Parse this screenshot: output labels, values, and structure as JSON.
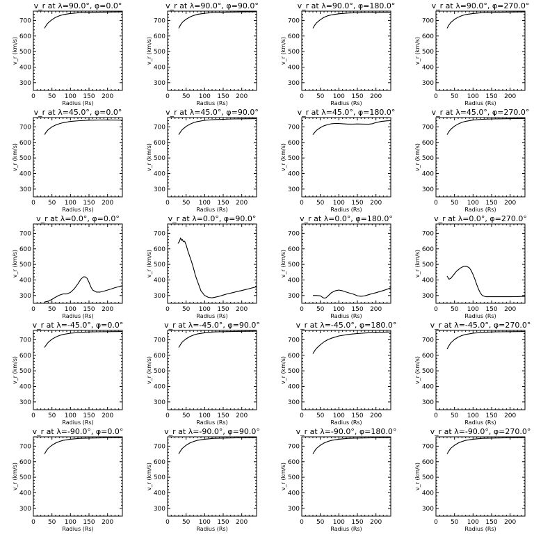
{
  "chart_data": [
    {
      "type": "line",
      "title": "v_r at λ=90.0°, φ=0.0°",
      "xlabel": "Radius (Rs)",
      "ylabel": "v_r (km/s)",
      "xlim": [
        0,
        240
      ],
      "ylim": [
        250,
        760
      ],
      "xticks": [
        0,
        50,
        100,
        150,
        200
      ],
      "yticks": [
        300,
        400,
        500,
        600,
        700
      ],
      "grid": false,
      "x": [
        30,
        35,
        40,
        50,
        60,
        70,
        80,
        100,
        125,
        150,
        175,
        200,
        240
      ],
      "y": [
        650,
        670,
        685,
        705,
        720,
        730,
        737,
        745,
        750,
        752,
        753,
        754,
        755
      ]
    },
    {
      "type": "line",
      "title": "v_r at λ=90.0°, φ=90.0°",
      "xlabel": "Radius (Rs)",
      "ylabel": "v_r (km/s)",
      "xlim": [
        0,
        240
      ],
      "ylim": [
        250,
        760
      ],
      "xticks": [
        0,
        50,
        100,
        150,
        200
      ],
      "yticks": [
        300,
        400,
        500,
        600,
        700
      ],
      "grid": false,
      "x": [
        30,
        35,
        40,
        50,
        60,
        70,
        80,
        100,
        125,
        150,
        175,
        200,
        240
      ],
      "y": [
        650,
        672,
        688,
        708,
        722,
        732,
        739,
        746,
        751,
        753,
        754,
        755,
        756
      ]
    },
    {
      "type": "line",
      "title": "v_r at λ=90.0°, φ=180.0°",
      "xlabel": "Radius (Rs)",
      "ylabel": "v_r (km/s)",
      "xlim": [
        0,
        240
      ],
      "ylim": [
        250,
        760
      ],
      "xticks": [
        0,
        50,
        100,
        150,
        200
      ],
      "yticks": [
        300,
        400,
        500,
        600,
        700
      ],
      "grid": false,
      "x": [
        30,
        35,
        40,
        50,
        60,
        70,
        80,
        100,
        125,
        150,
        175,
        200,
        240
      ],
      "y": [
        650,
        670,
        685,
        705,
        720,
        730,
        736,
        743,
        748,
        750,
        751,
        752,
        753
      ]
    },
    {
      "type": "line",
      "title": "v_r at λ=90.0°, φ=270.0°",
      "xlabel": "Radius (Rs)",
      "ylabel": "v_r (km/s)",
      "xlim": [
        0,
        240
      ],
      "ylim": [
        250,
        760
      ],
      "xticks": [
        0,
        50,
        100,
        150,
        200
      ],
      "yticks": [
        300,
        400,
        500,
        600,
        700
      ],
      "grid": false,
      "x": [
        30,
        35,
        40,
        50,
        60,
        70,
        80,
        100,
        125,
        150,
        175,
        200,
        240
      ],
      "y": [
        650,
        671,
        687,
        707,
        721,
        731,
        738,
        745,
        750,
        752,
        753,
        754,
        755
      ]
    },
    {
      "type": "line",
      "title": "v_r at λ=45.0°, φ=0.0°",
      "xlabel": "Radius (Rs)",
      "ylabel": "v_r (km/s)",
      "xlim": [
        0,
        240
      ],
      "ylim": [
        250,
        760
      ],
      "xticks": [
        0,
        50,
        100,
        150,
        200
      ],
      "yticks": [
        300,
        400,
        500,
        600,
        700
      ],
      "grid": false,
      "x": [
        30,
        35,
        40,
        50,
        60,
        70,
        80,
        100,
        125,
        150,
        175,
        200,
        220,
        240
      ],
      "y": [
        650,
        668,
        682,
        700,
        712,
        720,
        727,
        735,
        740,
        743,
        744,
        745,
        744,
        743
      ]
    },
    {
      "type": "line",
      "title": "v_r at λ=45.0°, φ=90.0°",
      "xlabel": "Radius (Rs)",
      "ylabel": "v_r (km/s)",
      "xlim": [
        0,
        240
      ],
      "ylim": [
        250,
        760
      ],
      "xticks": [
        0,
        50,
        100,
        150,
        200
      ],
      "yticks": [
        300,
        400,
        500,
        600,
        700
      ],
      "grid": false,
      "x": [
        30,
        35,
        40,
        50,
        60,
        70,
        80,
        100,
        125,
        150,
        175,
        200,
        240
      ],
      "y": [
        650,
        668,
        683,
        703,
        717,
        727,
        734,
        742,
        747,
        749,
        751,
        752,
        753
      ]
    },
    {
      "type": "line",
      "title": "v_r at λ=45.0°, φ=180.0°",
      "xlabel": "Radius (Rs)",
      "ylabel": "v_r (km/s)",
      "xlim": [
        0,
        240
      ],
      "ylim": [
        250,
        760
      ],
      "xticks": [
        0,
        50,
        100,
        150,
        200
      ],
      "yticks": [
        300,
        400,
        500,
        600,
        700
      ],
      "grid": false,
      "x": [
        30,
        35,
        40,
        50,
        60,
        70,
        80,
        90,
        100,
        110,
        125,
        140,
        150,
        165,
        180,
        190,
        200,
        215,
        230,
        240
      ],
      "y": [
        650,
        665,
        678,
        695,
        707,
        715,
        720,
        722,
        722,
        720,
        718,
        718,
        719,
        718,
        717,
        720,
        728,
        735,
        739,
        740
      ]
    },
    {
      "type": "line",
      "title": "v_r at λ=45.0°, φ=270.0°",
      "xlabel": "Radius (Rs)",
      "ylabel": "v_r (km/s)",
      "xlim": [
        0,
        240
      ],
      "ylim": [
        250,
        760
      ],
      "xticks": [
        0,
        50,
        100,
        150,
        200
      ],
      "yticks": [
        300,
        400,
        500,
        600,
        700
      ],
      "grid": false,
      "x": [
        30,
        35,
        40,
        50,
        60,
        70,
        80,
        100,
        125,
        150,
        175,
        200,
        240
      ],
      "y": [
        650,
        670,
        685,
        705,
        719,
        729,
        736,
        744,
        749,
        751,
        752,
        753,
        754
      ]
    },
    {
      "type": "line",
      "title": "v_r at λ=0.0°, φ=0.0°",
      "xlabel": "Radius (Rs)",
      "ylabel": "v_r (km/s)",
      "xlim": [
        0,
        240
      ],
      "ylim": [
        250,
        760
      ],
      "xticks": [
        0,
        50,
        100,
        150,
        200
      ],
      "yticks": [
        300,
        400,
        500,
        600,
        700
      ],
      "grid": false,
      "x": [
        30,
        40,
        50,
        60,
        70,
        80,
        90,
        100,
        110,
        120,
        128,
        135,
        140,
        145,
        150,
        155,
        160,
        170,
        180,
        190,
        200,
        210,
        220,
        230,
        240
      ],
      "y": [
        258,
        263,
        275,
        290,
        302,
        310,
        310,
        320,
        342,
        375,
        405,
        420,
        420,
        410,
        385,
        355,
        335,
        322,
        322,
        328,
        335,
        342,
        350,
        357,
        363
      ]
    },
    {
      "type": "line",
      "title": "v_r at λ=0.0°, φ=90.0°",
      "xlabel": "Radius (Rs)",
      "ylabel": "v_r (km/s)",
      "xlim": [
        0,
        240
      ],
      "ylim": [
        250,
        760
      ],
      "xticks": [
        0,
        50,
        100,
        150,
        200
      ],
      "yticks": [
        300,
        400,
        500,
        600,
        700
      ],
      "grid": false,
      "x": [
        28,
        32,
        35,
        38,
        40,
        43,
        46,
        50,
        55,
        60,
        65,
        70,
        75,
        80,
        90,
        100,
        110,
        120,
        130,
        140,
        150,
        160,
        175,
        190,
        200,
        210,
        220,
        230,
        240
      ],
      "y": [
        635,
        648,
        670,
        655,
        660,
        645,
        650,
        625,
        585,
        550,
        515,
        475,
        430,
        395,
        330,
        300,
        288,
        285,
        290,
        295,
        303,
        310,
        318,
        327,
        332,
        338,
        344,
        350,
        356
      ]
    },
    {
      "type": "line",
      "title": "v_r at λ=0.0°, φ=180.0°",
      "xlabel": "Radius (Rs)",
      "ylabel": "v_r (km/s)",
      "xlim": [
        0,
        240
      ],
      "ylim": [
        250,
        760
      ],
      "xticks": [
        0,
        50,
        100,
        150,
        200
      ],
      "yticks": [
        300,
        400,
        500,
        600,
        700
      ],
      "grid": false,
      "x": [
        30,
        40,
        50,
        55,
        60,
        65,
        70,
        75,
        80,
        90,
        100,
        110,
        120,
        130,
        140,
        150,
        160,
        170,
        180,
        190,
        200,
        210,
        220,
        230,
        240
      ],
      "y": [
        300,
        300,
        298,
        290,
        283,
        285,
        295,
        307,
        318,
        330,
        335,
        330,
        322,
        315,
        308,
        298,
        295,
        298,
        305,
        312,
        318,
        325,
        332,
        340,
        350
      ]
    },
    {
      "type": "line",
      "title": "v_r at λ=0.0°, φ=270.0°",
      "xlabel": "Radius (Rs)",
      "ylabel": "v_r (km/s)",
      "xlim": [
        0,
        240
      ],
      "ylim": [
        250,
        760
      ],
      "xticks": [
        0,
        50,
        100,
        150,
        200
      ],
      "yticks": [
        300,
        400,
        500,
        600,
        700
      ],
      "grid": false,
      "x": [
        30,
        35,
        40,
        45,
        50,
        55,
        60,
        65,
        70,
        75,
        80,
        85,
        90,
        95,
        100,
        105,
        110,
        115,
        120,
        125,
        130,
        135,
        140,
        150,
        160,
        175,
        200,
        220,
        240
      ],
      "y": [
        425,
        405,
        410,
        425,
        440,
        455,
        465,
        475,
        482,
        487,
        488,
        485,
        478,
        460,
        435,
        405,
        370,
        340,
        315,
        300,
        295,
        292,
        292,
        292,
        292,
        292,
        292,
        293,
        295
      ]
    },
    {
      "type": "line",
      "title": "v_r at λ=-45.0°, φ=0.0°",
      "xlabel": "Radius (Rs)",
      "ylabel": "v_r (km/s)",
      "xlim": [
        0,
        240
      ],
      "ylim": [
        250,
        760
      ],
      "xticks": [
        0,
        50,
        100,
        150,
        200
      ],
      "yticks": [
        300,
        400,
        500,
        600,
        700
      ],
      "grid": false,
      "x": [
        30,
        35,
        40,
        50,
        60,
        70,
        80,
        100,
        125,
        150,
        175,
        200,
        240
      ],
      "y": [
        650,
        668,
        683,
        703,
        717,
        727,
        734,
        742,
        747,
        750,
        751,
        752,
        753
      ]
    },
    {
      "type": "line",
      "title": "v_r at λ=-45.0°, φ=90.0°",
      "xlabel": "Radius (Rs)",
      "ylabel": "v_r (km/s)",
      "xlim": [
        0,
        240
      ],
      "ylim": [
        250,
        760
      ],
      "xticks": [
        0,
        50,
        100,
        150,
        200
      ],
      "yticks": [
        300,
        400,
        500,
        600,
        700
      ],
      "grid": false,
      "x": [
        30,
        35,
        40,
        50,
        60,
        70,
        80,
        100,
        125,
        150,
        175,
        200,
        240
      ],
      "y": [
        650,
        670,
        686,
        706,
        720,
        730,
        737,
        745,
        750,
        752,
        753,
        754,
        755
      ]
    },
    {
      "type": "line",
      "title": "v_r at λ=-45.0°, φ=180.0°",
      "xlabel": "Radius (Rs)",
      "ylabel": "v_r (km/s)",
      "xlim": [
        0,
        240
      ],
      "ylim": [
        250,
        760
      ],
      "xticks": [
        0,
        50,
        100,
        150,
        200
      ],
      "yticks": [
        300,
        400,
        500,
        600,
        700
      ],
      "grid": false,
      "x": [
        30,
        35,
        40,
        50,
        60,
        70,
        80,
        100,
        125,
        150,
        175,
        200,
        240
      ],
      "y": [
        610,
        630,
        645,
        668,
        686,
        700,
        710,
        724,
        734,
        740,
        744,
        747,
        750
      ]
    },
    {
      "type": "line",
      "title": "v_r at λ=-45.0°, φ=270.0°",
      "xlabel": "Radius (Rs)",
      "ylabel": "v_r (km/s)",
      "xlim": [
        0,
        240
      ],
      "ylim": [
        250,
        760
      ],
      "xticks": [
        0,
        50,
        100,
        150,
        200
      ],
      "yticks": [
        300,
        400,
        500,
        600,
        700
      ],
      "grid": false,
      "x": [
        30,
        35,
        40,
        50,
        60,
        70,
        80,
        100,
        125,
        150,
        175,
        200,
        240
      ],
      "y": [
        640,
        662,
        680,
        702,
        717,
        727,
        734,
        742,
        747,
        750,
        751,
        752,
        753
      ]
    },
    {
      "type": "line",
      "title": "v_r at λ=-90.0°, φ=0.0°",
      "xlabel": "Radius (Rs)",
      "ylabel": "v_r (km/s)",
      "xlim": [
        0,
        240
      ],
      "ylim": [
        250,
        760
      ],
      "xticks": [
        0,
        50,
        100,
        150,
        200
      ],
      "yticks": [
        300,
        400,
        500,
        600,
        700
      ],
      "grid": false,
      "x": [
        30,
        35,
        40,
        50,
        60,
        70,
        80,
        100,
        125,
        150,
        175,
        200,
        240
      ],
      "y": [
        650,
        670,
        686,
        706,
        720,
        730,
        737,
        745,
        750,
        752,
        753,
        754,
        755
      ]
    },
    {
      "type": "line",
      "title": "v_r at λ=-90.0°, φ=90.0°",
      "xlabel": "Radius (Rs)",
      "ylabel": "v_r (km/s)",
      "xlim": [
        0,
        240
      ],
      "ylim": [
        250,
        760
      ],
      "xticks": [
        0,
        50,
        100,
        150,
        200
      ],
      "yticks": [
        300,
        400,
        500,
        600,
        700
      ],
      "grid": false,
      "x": [
        30,
        35,
        40,
        50,
        60,
        70,
        80,
        100,
        125,
        150,
        175,
        200,
        240
      ],
      "y": [
        650,
        670,
        686,
        706,
        720,
        730,
        737,
        745,
        750,
        752,
        753,
        754,
        755
      ]
    },
    {
      "type": "line",
      "title": "v_r at λ=-90.0°, φ=180.0°",
      "xlabel": "Radius (Rs)",
      "ylabel": "v_r (km/s)",
      "xlim": [
        0,
        240
      ],
      "ylim": [
        250,
        760
      ],
      "xticks": [
        0,
        50,
        100,
        150,
        200
      ],
      "yticks": [
        300,
        400,
        500,
        600,
        700
      ],
      "grid": false,
      "x": [
        30,
        35,
        40,
        50,
        60,
        70,
        80,
        100,
        125,
        150,
        175,
        200,
        240
      ],
      "y": [
        650,
        670,
        686,
        706,
        720,
        730,
        737,
        745,
        750,
        752,
        753,
        754,
        755
      ]
    },
    {
      "type": "line",
      "title": "v_r at λ=-90.0°, φ=270.0°",
      "xlabel": "Radius (Rs)",
      "ylabel": "v_r (km/s)",
      "xlim": [
        0,
        240
      ],
      "ylim": [
        250,
        760
      ],
      "xticks": [
        0,
        50,
        100,
        150,
        200
      ],
      "yticks": [
        300,
        400,
        500,
        600,
        700
      ],
      "grid": false,
      "x": [
        30,
        35,
        40,
        50,
        60,
        70,
        80,
        100,
        125,
        150,
        175,
        200,
        240
      ],
      "y": [
        650,
        670,
        686,
        706,
        720,
        730,
        737,
        745,
        750,
        752,
        753,
        754,
        755
      ]
    }
  ]
}
